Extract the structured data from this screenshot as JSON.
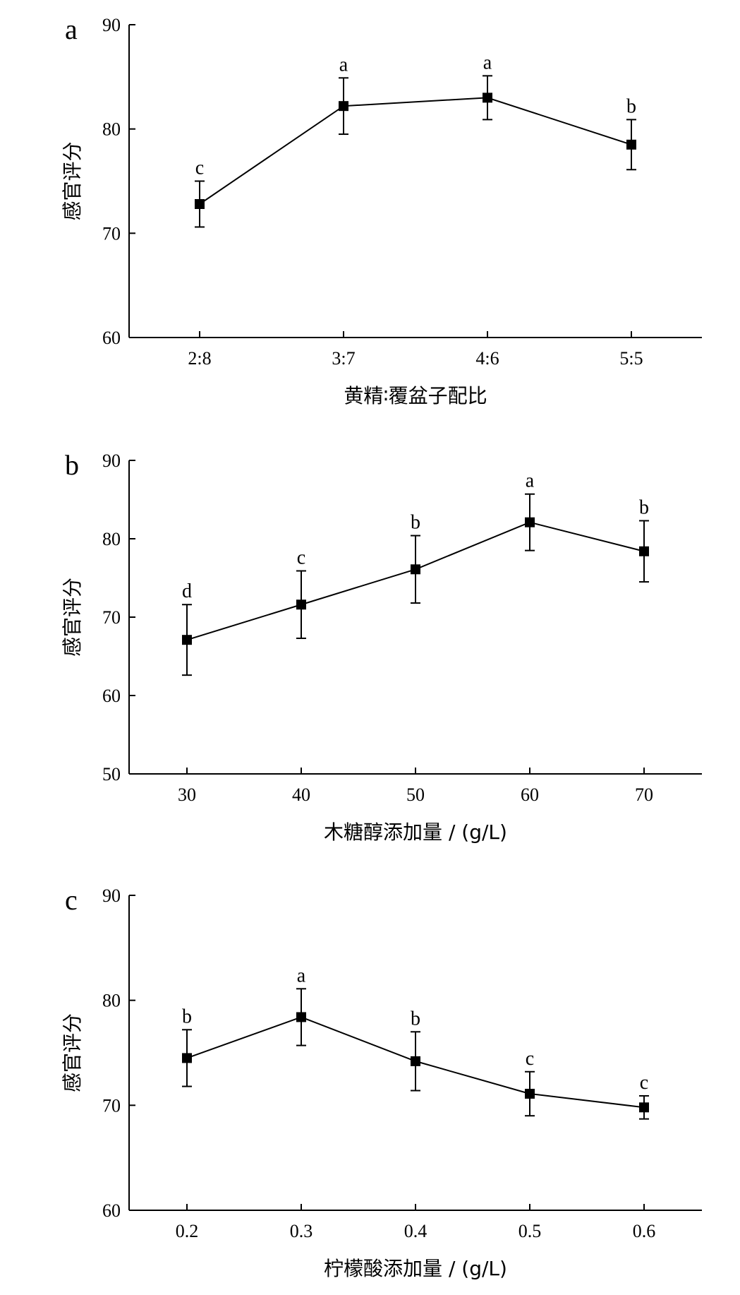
{
  "chart_data": [
    {
      "type": "line",
      "panel_label": "a",
      "xlabel": "黄精∶覆盆子配比",
      "ylabel": "感官评分",
      "categories": [
        "2:8",
        "3:7",
        "4:6",
        "5:5"
      ],
      "series": [
        {
          "values": [
            72.8,
            82.2,
            83.0,
            78.5
          ],
          "errors": [
            2.2,
            2.7,
            2.1,
            2.4
          ],
          "significance": [
            "c",
            "a",
            "a",
            "b"
          ]
        }
      ],
      "ylim": [
        60,
        90
      ],
      "yticks": [
        60,
        70,
        80,
        90
      ],
      "grid": false,
      "marker": "square",
      "color": "#000000"
    },
    {
      "type": "line",
      "panel_label": "b",
      "xlabel": "木糖醇添加量 / (g/L)",
      "ylabel": "感官评分",
      "categories": [
        "30",
        "40",
        "50",
        "60",
        "70"
      ],
      "series": [
        {
          "values": [
            67.1,
            71.6,
            76.1,
            82.1,
            78.4
          ],
          "errors": [
            4.5,
            4.3,
            4.3,
            3.6,
            3.9
          ],
          "significance": [
            "d",
            "c",
            "b",
            "a",
            "b"
          ]
        }
      ],
      "ylim": [
        50,
        90
      ],
      "yticks": [
        50,
        60,
        70,
        80,
        90
      ],
      "grid": false,
      "marker": "square",
      "color": "#000000"
    },
    {
      "type": "line",
      "panel_label": "c",
      "xlabel": "柠檬酸添加量 / (g/L)",
      "ylabel": "感官评分",
      "categories": [
        "0.2",
        "0.3",
        "0.4",
        "0.5",
        "0.6"
      ],
      "series": [
        {
          "values": [
            74.5,
            78.4,
            74.2,
            71.1,
            69.8
          ],
          "errors": [
            2.7,
            2.7,
            2.8,
            2.1,
            1.1
          ],
          "significance": [
            "b",
            "a",
            "b",
            "c",
            "c"
          ]
        }
      ],
      "ylim": [
        60,
        90
      ],
      "yticks": [
        60,
        70,
        80,
        90
      ],
      "grid": false,
      "marker": "square",
      "color": "#000000"
    }
  ]
}
